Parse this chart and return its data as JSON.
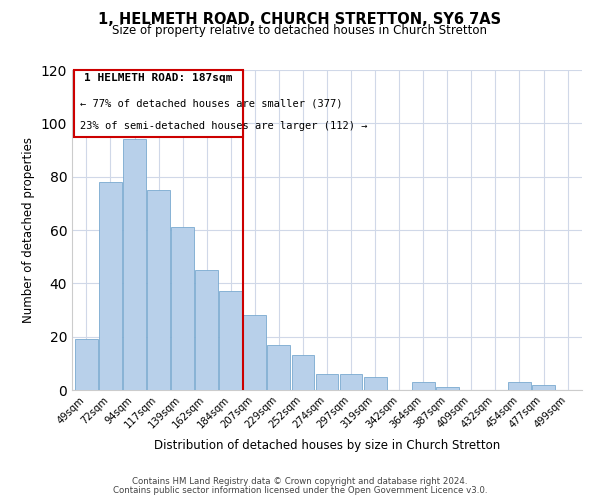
{
  "title": "1, HELMETH ROAD, CHURCH STRETTON, SY6 7AS",
  "subtitle": "Size of property relative to detached houses in Church Stretton",
  "xlabel": "Distribution of detached houses by size in Church Stretton",
  "ylabel": "Number of detached properties",
  "categories": [
    "49sqm",
    "72sqm",
    "94sqm",
    "117sqm",
    "139sqm",
    "162sqm",
    "184sqm",
    "207sqm",
    "229sqm",
    "252sqm",
    "274sqm",
    "297sqm",
    "319sqm",
    "342sqm",
    "364sqm",
    "387sqm",
    "409sqm",
    "432sqm",
    "454sqm",
    "477sqm",
    "499sqm"
  ],
  "values": [
    19,
    78,
    94,
    75,
    61,
    45,
    37,
    28,
    17,
    13,
    6,
    6,
    5,
    0,
    3,
    1,
    0,
    0,
    3,
    2,
    0
  ],
  "bar_color": "#b8d0ea",
  "bar_edge_color": "#7aaad0",
  "highlight_bar_idx": 6,
  "highlight_color": "#cc0000",
  "ylim": [
    0,
    120
  ],
  "yticks": [
    0,
    20,
    40,
    60,
    80,
    100,
    120
  ],
  "annotation_line1": "1 HELMETH ROAD: 187sqm",
  "annotation_line2": "← 77% of detached houses are smaller (377)",
  "annotation_line3": "23% of semi-detached houses are larger (112) →",
  "footer1": "Contains HM Land Registry data © Crown copyright and database right 2024.",
  "footer2": "Contains public sector information licensed under the Open Government Licence v3.0.",
  "background_color": "#ffffff",
  "grid_color": "#d0d8e8"
}
